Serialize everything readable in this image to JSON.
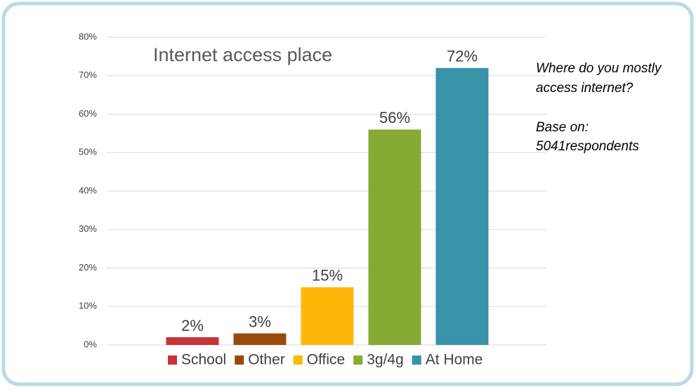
{
  "chart_data": {
    "type": "bar",
    "title": "Internet access place",
    "series": [
      {
        "name": "School",
        "color": "#c8323a",
        "values": [
          2
        ],
        "value_labels": [
          "2%"
        ]
      },
      {
        "name": "Other",
        "color": "#9c4a0c",
        "values": [
          3
        ],
        "value_labels": [
          "3%"
        ]
      },
      {
        "name": "Office",
        "color": "#ffb80a",
        "values": [
          15
        ],
        "value_labels": [
          "15%"
        ]
      },
      {
        "name": "3g/4g",
        "color": "#86aa34",
        "values": [
          56
        ],
        "value_labels": [
          "56%"
        ]
      },
      {
        "name": "At Home",
        "color": "#3892a8",
        "values": [
          72
        ],
        "value_labels": [
          "72%"
        ]
      }
    ],
    "ylim": [
      0,
      80
    ],
    "yticks": [
      {
        "value": 0,
        "label": "0%"
      },
      {
        "value": 10,
        "label": "10%"
      },
      {
        "value": 20,
        "label": "20%"
      },
      {
        "value": 30,
        "label": "30%"
      },
      {
        "value": 40,
        "label": "40%"
      },
      {
        "value": 50,
        "label": "50%"
      },
      {
        "value": 60,
        "label": "60%"
      },
      {
        "value": 70,
        "label": "70%"
      },
      {
        "value": 80,
        "label": "80%"
      }
    ],
    "grid": true,
    "legend": "bottom",
    "annotations": [
      "Where do you mostly",
      "access internet?",
      "Base on:",
      "5041respondents"
    ]
  }
}
